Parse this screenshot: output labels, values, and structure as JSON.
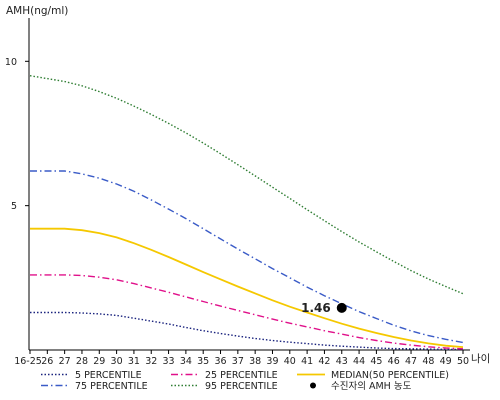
{
  "chart_data": {
    "type": "line",
    "ylabel": "AMH(ng/ml)",
    "xlabel": "나이",
    "ylim": [
      0,
      11.5
    ],
    "y_ticks": [
      5,
      10
    ],
    "x_ticks": [
      "16-25",
      "26",
      "27",
      "28",
      "29",
      "30",
      "31",
      "32",
      "33",
      "34",
      "35",
      "36",
      "37",
      "38",
      "39",
      "40",
      "41",
      "42",
      "43",
      "44",
      "45",
      "46",
      "47",
      "48",
      "49",
      "50"
    ],
    "series": [
      {
        "name": "5 PERCENTILE",
        "color": "#1a237e",
        "dash": "dot",
        "values": [
          1.3,
          1.3,
          1.3,
          1.28,
          1.25,
          1.2,
          1.1,
          1.0,
          0.9,
          0.78,
          0.67,
          0.57,
          0.48,
          0.4,
          0.33,
          0.27,
          0.22,
          0.17,
          0.13,
          0.1,
          0.07,
          0.05,
          0.04,
          0.03,
          0.02,
          0.02
        ]
      },
      {
        "name": "25 PERCENTILE",
        "color": "#e0108a",
        "dash": "dashdot",
        "values": [
          2.6,
          2.6,
          2.6,
          2.58,
          2.52,
          2.43,
          2.3,
          2.15,
          2.0,
          1.84,
          1.68,
          1.52,
          1.37,
          1.22,
          1.07,
          0.93,
          0.8,
          0.67,
          0.55,
          0.43,
          0.33,
          0.24,
          0.17,
          0.11,
          0.07,
          0.04
        ]
      },
      {
        "name": "MEDIAN(50 PERCENTILE)",
        "color": "#f5c800",
        "dash": "solid",
        "values": [
          4.2,
          4.2,
          4.2,
          4.15,
          4.05,
          3.9,
          3.7,
          3.47,
          3.22,
          2.96,
          2.7,
          2.45,
          2.2,
          1.96,
          1.72,
          1.5,
          1.3,
          1.1,
          0.91,
          0.74,
          0.59,
          0.45,
          0.33,
          0.23,
          0.15,
          0.1
        ]
      },
      {
        "name": "75 PERCENTILE",
        "color": "#3a5bc7",
        "dash": "dashdot",
        "values": [
          6.2,
          6.2,
          6.2,
          6.1,
          5.95,
          5.75,
          5.5,
          5.2,
          4.88,
          4.55,
          4.2,
          3.85,
          3.5,
          3.16,
          2.82,
          2.5,
          2.18,
          1.88,
          1.6,
          1.33,
          1.09,
          0.86,
          0.66,
          0.5,
          0.37,
          0.26
        ]
      },
      {
        "name": "95 PERCENTILE",
        "color": "#2e7d32",
        "dash": "dot",
        "values": [
          9.5,
          9.4,
          9.3,
          9.15,
          8.95,
          8.72,
          8.45,
          8.16,
          7.85,
          7.52,
          7.17,
          6.8,
          6.42,
          6.03,
          5.64,
          5.25,
          4.86,
          4.48,
          4.1,
          3.74,
          3.4,
          3.07,
          2.75,
          2.46,
          2.2,
          1.95
        ]
      }
    ],
    "point": {
      "x": "43",
      "y": 1.46,
      "label": "1.46",
      "color": "#000000"
    },
    "legend": {
      "placement": "bottom",
      "entries": [
        {
          "label": "5 PERCENTILE",
          "series": 0
        },
        {
          "label": "25 PERCENTILE",
          "series": 1
        },
        {
          "label": "MEDIAN(50 PERCENTILE)",
          "series": 2
        },
        {
          "label": "75 PERCENTILE",
          "series": 3
        },
        {
          "label": "95 PERCENTILE",
          "series": 4
        },
        {
          "label": "수진자의 AMH 농도",
          "marker": "point"
        }
      ]
    },
    "grid": false
  }
}
